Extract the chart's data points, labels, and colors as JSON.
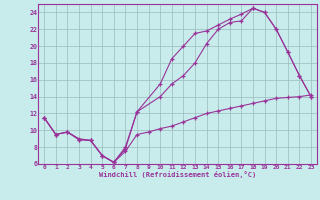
{
  "xlabel": "Windchill (Refroidissement éolien,°C)",
  "bg_color": "#c8ecec",
  "line_color": "#993399",
  "grid_color": "#99bbbb",
  "xlim": [
    -0.5,
    23.5
  ],
  "ylim": [
    6,
    25
  ],
  "yticks": [
    6,
    8,
    10,
    12,
    14,
    16,
    18,
    20,
    22,
    24
  ],
  "xticks": [
    0,
    1,
    2,
    3,
    4,
    5,
    6,
    7,
    8,
    9,
    10,
    11,
    12,
    13,
    14,
    15,
    16,
    17,
    18,
    19,
    20,
    21,
    22,
    23
  ],
  "curve1_x": [
    0,
    1,
    2,
    3,
    4,
    5,
    6,
    7,
    8,
    10,
    11,
    12,
    13,
    14,
    15,
    16,
    17,
    18,
    19,
    20,
    21,
    22,
    23
  ],
  "curve1_y": [
    11.5,
    9.5,
    9.8,
    8.9,
    8.8,
    7.0,
    6.2,
    7.8,
    12.2,
    15.5,
    18.5,
    20.0,
    21.5,
    21.8,
    22.5,
    23.2,
    23.8,
    24.5,
    24.0,
    22.0,
    19.3,
    16.5,
    14.0
  ],
  "curve2_x": [
    0,
    1,
    2,
    3,
    4,
    5,
    6,
    7,
    8,
    10,
    11,
    12,
    13,
    14,
    15,
    16,
    17,
    18,
    19,
    20,
    21,
    22,
    23
  ],
  "curve2_y": [
    11.5,
    9.5,
    9.8,
    8.9,
    8.8,
    7.0,
    6.2,
    8.0,
    12.2,
    14.0,
    15.5,
    16.5,
    18.0,
    20.3,
    22.0,
    22.8,
    23.0,
    24.5,
    24.0,
    22.0,
    19.3,
    16.5,
    14.0
  ],
  "curve3_x": [
    0,
    1,
    2,
    3,
    4,
    5,
    6,
    7,
    8,
    9,
    10,
    11,
    12,
    13,
    14,
    15,
    16,
    17,
    18,
    19,
    20,
    21,
    22,
    23
  ],
  "curve3_y": [
    11.5,
    9.5,
    9.8,
    9.0,
    8.8,
    7.0,
    6.2,
    7.5,
    9.5,
    9.8,
    10.2,
    10.5,
    11.0,
    11.5,
    12.0,
    12.3,
    12.6,
    12.9,
    13.2,
    13.5,
    13.8,
    13.9,
    14.0,
    14.2
  ]
}
